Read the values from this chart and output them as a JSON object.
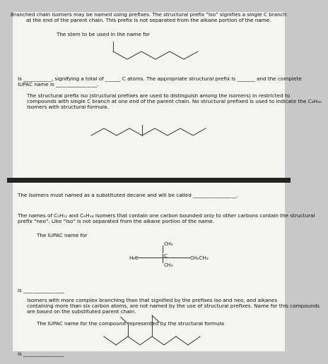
{
  "bg_color": "#c8c8c8",
  "panel_bg": "#f5f5f0",
  "separator_color": "#222222",
  "text_color": "#111111",
  "title_text": "Branched chain isomers may be named using prefixes. The structural prefix \"iso\" signifies a single C branch\nat the end of the parent chain. This prefix is not separated from the alkane portion of the name.",
  "stem_text": "The stem to be used in the name for",
  "fill_text1": "Is ___________, signifying a total of ______ C atoms. The appropriate structural prefix is _______ and the complete\nIUPAC name is ________________.",
  "para2_text": "The structural prefix iso (structural prefixes are used to distinguish among the isomers) in restricted to\ncompounds with single C branch at one end of the parent chain. No structural prefixed is used to indicate the C₉H₂₀\nisomers with structural formula.",
  "decane_text": "The isomers must named as a substituted decane and will be called _________________.",
  "neo_text": "The names of C₅H₁₂ and C₆H₁₄ isomers that contain one carbon bounded only to other carbons contain the structural\nprefix \"neo\". Like \"iso\" is not separated from the alkane portion of the name.",
  "iupac_text": "The IUPAC name for",
  "is_text": "is ________________",
  "complex_text": "Isomers with more complex branching than that signified by the prefixes iso and neo, and alkanes\ncontaining more than six carbon atoms, are not named by the use of structural prefixes. Name for this compounds\nare based on the substituted parent chain.",
  "iupac2_text": "The IUPAC name for the compound represented by the structural formula",
  "is2_text": "is ________________",
  "line_color": "#444444"
}
